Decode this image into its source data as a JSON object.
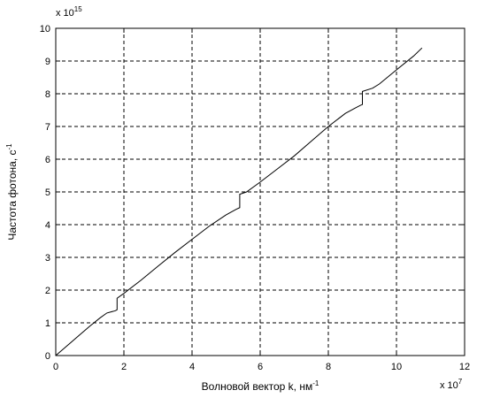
{
  "chart_data": {
    "type": "line",
    "title": "",
    "xlabel": "Волновой вектор k, нм",
    "xlabel_sup": "-1",
    "ylabel": "Частота фотона, с",
    "ylabel_sup": "-1",
    "x_multiplier": {
      "base": "x 10",
      "exp": "7"
    },
    "y_multiplier": {
      "base": "x 10",
      "exp": "15"
    },
    "xlim": [
      0,
      12
    ],
    "ylim": [
      0,
      10
    ],
    "x_ticks": [
      0,
      2,
      4,
      6,
      8,
      10,
      12
    ],
    "y_ticks": [
      0,
      1,
      2,
      3,
      4,
      5,
      6,
      7,
      8,
      9,
      10
    ],
    "grid": true,
    "grid_style": "dashed",
    "line_color": "#000000",
    "series": [
      {
        "x": [
          0,
          0.5,
          1.0,
          1.3,
          1.5,
          1.75,
          1.8,
          1.8,
          2.0,
          2.5,
          3.0,
          3.5,
          4.0,
          4.5,
          5.0,
          5.3,
          5.4,
          5.4,
          5.6,
          6.0,
          6.5,
          7.0,
          7.5,
          8.0,
          8.5,
          8.8,
          8.95,
          9.0,
          9.0,
          9.3,
          9.5,
          10.0,
          10.5,
          10.75
        ],
        "y": [
          0,
          0.45,
          0.9,
          1.15,
          1.3,
          1.37,
          1.4,
          1.75,
          1.9,
          2.3,
          2.73,
          3.15,
          3.55,
          3.95,
          4.3,
          4.47,
          4.52,
          4.93,
          5.0,
          5.3,
          5.7,
          6.1,
          6.55,
          7.0,
          7.4,
          7.57,
          7.65,
          7.67,
          8.07,
          8.17,
          8.3,
          8.73,
          9.15,
          9.4
        ]
      }
    ]
  }
}
